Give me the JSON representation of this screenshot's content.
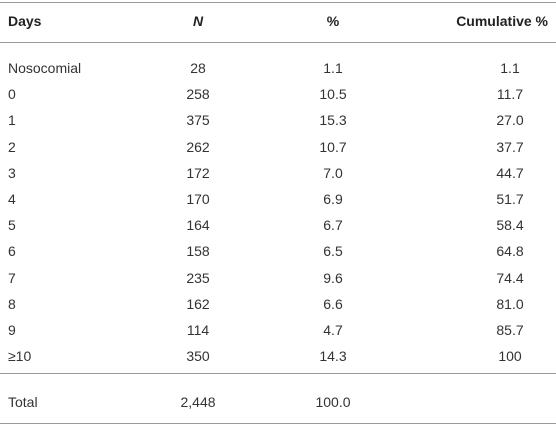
{
  "table": {
    "header": [
      "Days",
      "N",
      "%",
      "Cumulative %"
    ],
    "rows": [
      [
        "Nosocomial",
        "28",
        "1.1",
        "1.1"
      ],
      [
        "0",
        "258",
        "10.5",
        "11.7"
      ],
      [
        "1",
        "375",
        "15.3",
        "27.0"
      ],
      [
        "2",
        "262",
        "10.7",
        "37.7"
      ],
      [
        "3",
        "172",
        "7.0",
        "44.7"
      ],
      [
        "4",
        "170",
        "6.9",
        "51.7"
      ],
      [
        "5",
        "164",
        "6.7",
        "58.4"
      ],
      [
        "6",
        "158",
        "6.5",
        "64.8"
      ],
      [
        "7",
        "235",
        "9.6",
        "74.4"
      ],
      [
        "8",
        "162",
        "6.6",
        "81.0"
      ],
      [
        "9",
        "114",
        "4.7",
        "85.7"
      ],
      [
        "≥10",
        "350",
        "14.3",
        "100"
      ]
    ],
    "total": [
      "Total",
      "2,448",
      "100.0"
    ]
  }
}
